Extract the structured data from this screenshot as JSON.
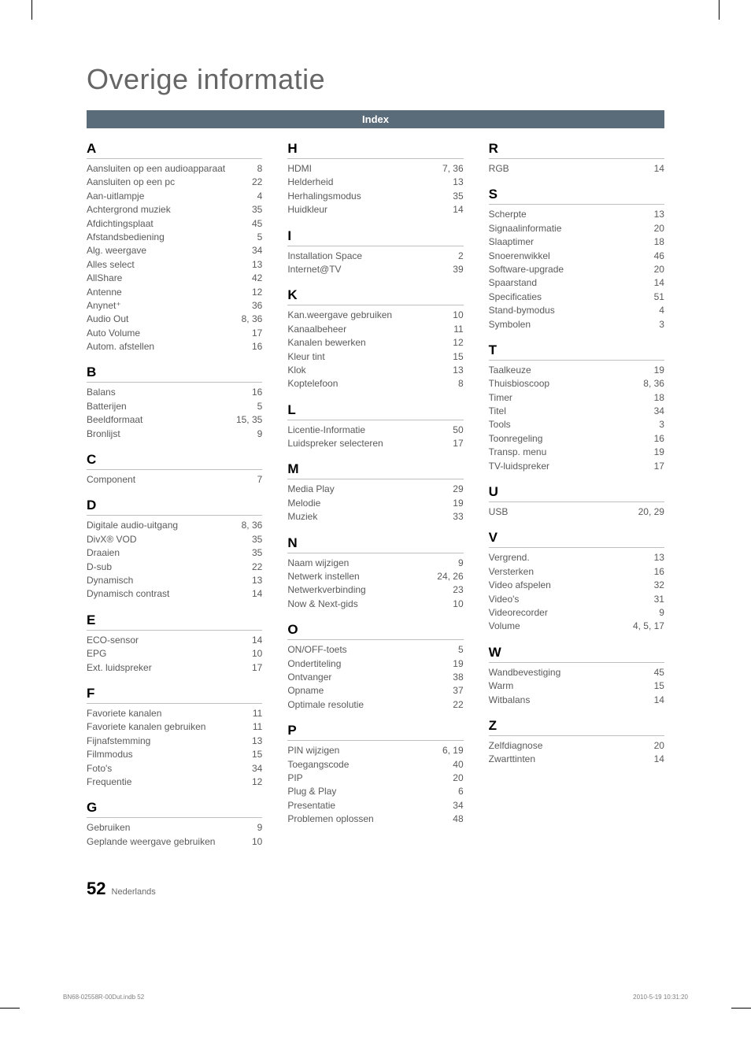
{
  "title": "Overige informatie",
  "index_label": "Index",
  "page_number": "52",
  "page_lang": "Nederlands",
  "footer_left": "BN68-02558R-00Dut.indb   52",
  "footer_right": "2010-5-19   10:31:20",
  "colors": {
    "bar_bg": "#5a6b7a",
    "bar_text": "#ffffff",
    "title_color": "#666666",
    "entry_color": "#5a5a5a",
    "rule_color": "#bfbfbf"
  },
  "columns": [
    [
      {
        "letter": "A",
        "entries": [
          {
            "term": "Aansluiten op een audioapparaat",
            "pages": "8"
          },
          {
            "term": "Aansluiten op een pc",
            "pages": "22"
          },
          {
            "term": "Aan-uitlampje",
            "pages": "4"
          },
          {
            "term": "Achtergrond muziek",
            "pages": "35"
          },
          {
            "term": "Afdichtingsplaat",
            "pages": "45"
          },
          {
            "term": "Afstandsbediening",
            "pages": "5"
          },
          {
            "term": "Alg. weergave",
            "pages": "34"
          },
          {
            "term": "Alles select",
            "pages": "13"
          },
          {
            "term": "AllShare",
            "pages": "42"
          },
          {
            "term": "Antenne",
            "pages": "12"
          },
          {
            "term": "Anynet⁺",
            "pages": "36"
          },
          {
            "term": "Audio Out",
            "pages": "8, 36"
          },
          {
            "term": "Auto Volume",
            "pages": "17"
          },
          {
            "term": "Autom. afstellen",
            "pages": "16"
          }
        ]
      },
      {
        "letter": "B",
        "entries": [
          {
            "term": "Balans",
            "pages": "16"
          },
          {
            "term": "Batterijen",
            "pages": "5"
          },
          {
            "term": "Beeldformaat",
            "pages": "15, 35"
          },
          {
            "term": "Bronlijst",
            "pages": "9"
          }
        ]
      },
      {
        "letter": "C",
        "entries": [
          {
            "term": "Component",
            "pages": "7"
          }
        ]
      },
      {
        "letter": "D",
        "entries": [
          {
            "term": "Digitale audio-uitgang",
            "pages": "8, 36"
          },
          {
            "term": "DivX® VOD",
            "pages": "35"
          },
          {
            "term": "Draaien",
            "pages": "35"
          },
          {
            "term": "D-sub",
            "pages": "22"
          },
          {
            "term": "Dynamisch",
            "pages": "13"
          },
          {
            "term": "Dynamisch contrast",
            "pages": "14"
          }
        ]
      },
      {
        "letter": "E",
        "entries": [
          {
            "term": "ECO-sensor",
            "pages": "14"
          },
          {
            "term": "EPG",
            "pages": "10"
          },
          {
            "term": "Ext. luidspreker",
            "pages": "17"
          }
        ]
      },
      {
        "letter": "F",
        "entries": [
          {
            "term": "Favoriete kanalen",
            "pages": "11"
          },
          {
            "term": "Favoriete kanalen gebruiken",
            "pages": "11"
          },
          {
            "term": "Fijnafstemming",
            "pages": "13"
          },
          {
            "term": "Filmmodus",
            "pages": "15"
          },
          {
            "term": "Foto's",
            "pages": "34"
          },
          {
            "term": "Frequentie",
            "pages": "12"
          }
        ]
      },
      {
        "letter": "G",
        "entries": [
          {
            "term": "Gebruiken",
            "pages": "9"
          },
          {
            "term": "Geplande weergave gebruiken",
            "pages": "10"
          }
        ]
      }
    ],
    [
      {
        "letter": "H",
        "entries": [
          {
            "term": "HDMI",
            "pages": "7, 36"
          },
          {
            "term": "Helderheid",
            "pages": "13"
          },
          {
            "term": "Herhalingsmodus",
            "pages": "35"
          },
          {
            "term": "Huidkleur",
            "pages": "14"
          }
        ]
      },
      {
        "letter": "I",
        "entries": [
          {
            "term": "Installation Space",
            "pages": "2"
          },
          {
            "term": "Internet@TV",
            "pages": "39"
          }
        ]
      },
      {
        "letter": "K",
        "entries": [
          {
            "term": "Kan.weergave gebruiken",
            "pages": "10"
          },
          {
            "term": "Kanaalbeheer",
            "pages": "11"
          },
          {
            "term": "Kanalen bewerken",
            "pages": "12"
          },
          {
            "term": "Kleur tint",
            "pages": "15"
          },
          {
            "term": "Klok",
            "pages": "13"
          },
          {
            "term": "Koptelefoon",
            "pages": "8"
          }
        ]
      },
      {
        "letter": "L",
        "entries": [
          {
            "term": "Licentie-Informatie",
            "pages": "50"
          },
          {
            "term": "Luidspreker selecteren",
            "pages": "17"
          }
        ]
      },
      {
        "letter": "M",
        "entries": [
          {
            "term": "Media Play",
            "pages": "29"
          },
          {
            "term": "Melodie",
            "pages": "19"
          },
          {
            "term": "Muziek",
            "pages": "33"
          }
        ]
      },
      {
        "letter": "N",
        "entries": [
          {
            "term": "Naam wijzigen",
            "pages": "9"
          },
          {
            "term": "Netwerk instellen",
            "pages": "24, 26"
          },
          {
            "term": "Netwerkverbinding",
            "pages": "23"
          },
          {
            "term": "Now & Next-gids",
            "pages": "10"
          }
        ]
      },
      {
        "letter": "O",
        "entries": [
          {
            "term": "ON/OFF-toets",
            "pages": "5"
          },
          {
            "term": "Ondertiteling",
            "pages": "19"
          },
          {
            "term": "Ontvanger",
            "pages": "38"
          },
          {
            "term": "Opname",
            "pages": "37"
          },
          {
            "term": "Optimale resolutie",
            "pages": "22"
          }
        ]
      },
      {
        "letter": "P",
        "entries": [
          {
            "term": "PIN wijzigen",
            "pages": "6, 19"
          },
          {
            "term": "Toegangscode",
            "pages": "40"
          },
          {
            "term": "PIP",
            "pages": "20"
          },
          {
            "term": "Plug & Play",
            "pages": "6"
          },
          {
            "term": "Presentatie",
            "pages": "34"
          },
          {
            "term": "Problemen oplossen",
            "pages": "48"
          }
        ]
      }
    ],
    [
      {
        "letter": "R",
        "entries": [
          {
            "term": "RGB",
            "pages": "14"
          }
        ]
      },
      {
        "letter": "S",
        "entries": [
          {
            "term": "Scherpte",
            "pages": "13"
          },
          {
            "term": "Signaalinformatie",
            "pages": "20"
          },
          {
            "term": "Slaaptimer",
            "pages": "18"
          },
          {
            "term": "Snoerenwikkel",
            "pages": "46"
          },
          {
            "term": "Software-upgrade",
            "pages": "20"
          },
          {
            "term": "Spaarstand",
            "pages": "14"
          },
          {
            "term": "Specificaties",
            "pages": "51"
          },
          {
            "term": "Stand-bymodus",
            "pages": "4"
          },
          {
            "term": "Symbolen",
            "pages": "3"
          }
        ]
      },
      {
        "letter": "T",
        "entries": [
          {
            "term": "Taalkeuze",
            "pages": "19"
          },
          {
            "term": "Thuisbioscoop",
            "pages": "8, 36"
          },
          {
            "term": "Timer",
            "pages": "18"
          },
          {
            "term": "Titel",
            "pages": "34"
          },
          {
            "term": "Tools",
            "pages": "3"
          },
          {
            "term": "Toonregeling",
            "pages": "16"
          },
          {
            "term": "Transp. menu",
            "pages": "19"
          },
          {
            "term": "TV-luidspreker",
            "pages": "17"
          }
        ]
      },
      {
        "letter": "U",
        "entries": [
          {
            "term": "USB",
            "pages": "20, 29"
          }
        ]
      },
      {
        "letter": "V",
        "entries": [
          {
            "term": "Vergrend.",
            "pages": "13"
          },
          {
            "term": "Versterken",
            "pages": "16"
          },
          {
            "term": "Video afspelen",
            "pages": "32"
          },
          {
            "term": "Video's",
            "pages": "31"
          },
          {
            "term": "Videorecorder",
            "pages": "9"
          },
          {
            "term": "Volume",
            "pages": "4, 5, 17"
          }
        ]
      },
      {
        "letter": "W",
        "entries": [
          {
            "term": "Wandbevestiging",
            "pages": "45"
          },
          {
            "term": "Warm",
            "pages": "15"
          },
          {
            "term": "Witbalans",
            "pages": "14"
          }
        ]
      },
      {
        "letter": "Z",
        "entries": [
          {
            "term": "Zelfdiagnose",
            "pages": "20"
          },
          {
            "term": "Zwarttinten",
            "pages": "14"
          }
        ]
      }
    ]
  ]
}
